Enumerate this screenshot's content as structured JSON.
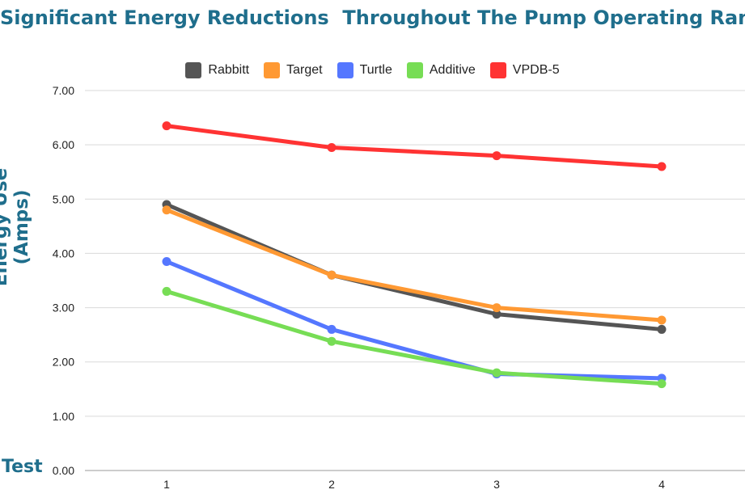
{
  "chart_data": {
    "type": "line",
    "title": "Significant Energy Reductions  Throughout The Pump Operating Range",
    "xlabel": "Test",
    "ylabel": "Energy Use (Amps)",
    "categories": [
      "1",
      "2",
      "3",
      "4"
    ],
    "ylim": [
      0,
      7
    ],
    "yticks": [
      "0.00",
      "1.00",
      "2.00",
      "3.00",
      "4.00",
      "5.00",
      "6.00",
      "7.00"
    ],
    "grid": true,
    "legend_position": "top",
    "series": [
      {
        "name": "Rabbitt",
        "color": "#555555",
        "values": [
          4.9,
          3.6,
          2.88,
          2.6
        ]
      },
      {
        "name": "Target",
        "color": "#ff9933",
        "values": [
          4.8,
          3.6,
          3.0,
          2.77
        ]
      },
      {
        "name": "Turtle",
        "color": "#5577ff",
        "values": [
          3.85,
          2.6,
          1.78,
          1.7
        ]
      },
      {
        "name": "Additive",
        "color": "#77dd55",
        "values": [
          3.3,
          2.38,
          1.8,
          1.6
        ]
      },
      {
        "name": "VPDB-5",
        "color": "#ff3333",
        "values": [
          6.35,
          5.95,
          5.8,
          5.6
        ]
      }
    ]
  }
}
